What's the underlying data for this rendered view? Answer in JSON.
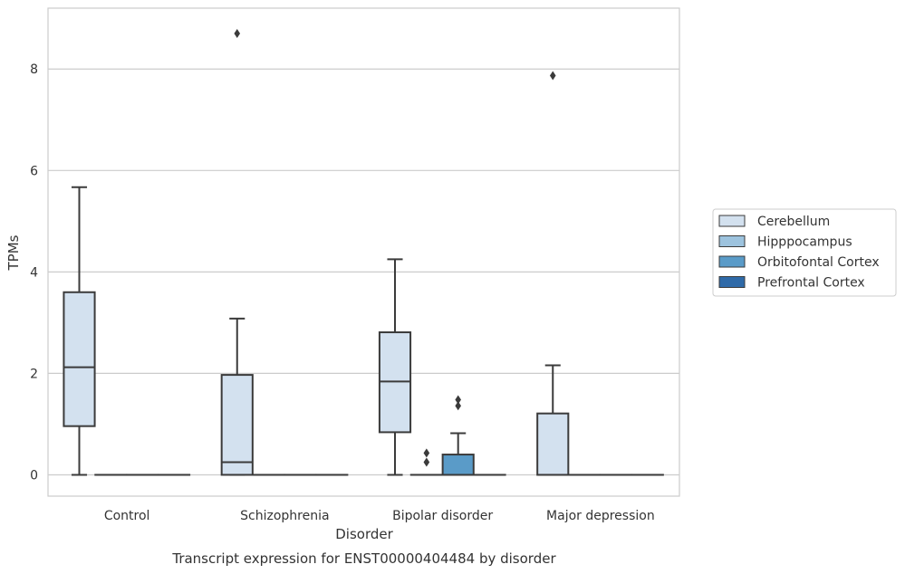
{
  "chart_data": {
    "type": "box",
    "title": "Transcript expression for ENST00000404484 by disorder",
    "xlabel": "Disorder",
    "ylabel": "TPMs",
    "ylim": [
      -0.42,
      9.2
    ],
    "yticks": [
      "0",
      "2",
      "4",
      "6",
      "8"
    ],
    "grid": true,
    "legend_placement": "right",
    "categories": [
      "Control",
      "Schizophrenia",
      "Bipolar disorder",
      "Major depression"
    ],
    "series": [
      {
        "name": "Cerebellum",
        "color": "#d3e1ef",
        "boxes": [
          {
            "q1": 0.96,
            "median": 2.12,
            "q3": 3.6,
            "whisker_low": 0.0,
            "whisker_high": 5.67,
            "outliers": []
          },
          {
            "q1": 0.0,
            "median": 0.25,
            "q3": 1.97,
            "whisker_low": 0.0,
            "whisker_high": 3.08,
            "outliers": [
              8.7
            ]
          },
          {
            "q1": 0.84,
            "median": 1.84,
            "q3": 2.81,
            "whisker_low": 0.0,
            "whisker_high": 4.25,
            "outliers": []
          },
          {
            "q1": 0.0,
            "median": 0.0,
            "q3": 1.21,
            "whisker_low": 0.0,
            "whisker_high": 2.16,
            "outliers": [
              7.87
            ]
          }
        ]
      },
      {
        "name": "Hipppocampus",
        "color": "#9dc3de",
        "boxes": [
          {
            "q1": 0.0,
            "median": 0.0,
            "q3": 0.0,
            "whisker_low": 0.0,
            "whisker_high": 0.0,
            "outliers": []
          },
          {
            "q1": 0.0,
            "median": 0.0,
            "q3": 0.0,
            "whisker_low": 0.0,
            "whisker_high": 0.0,
            "outliers": []
          },
          {
            "q1": 0.0,
            "median": 0.0,
            "q3": 0.0,
            "whisker_low": 0.0,
            "whisker_high": 0.0,
            "outliers": [
              0.25,
              0.43
            ]
          },
          {
            "q1": 0.0,
            "median": 0.0,
            "q3": 0.0,
            "whisker_low": 0.0,
            "whisker_high": 0.0,
            "outliers": []
          }
        ]
      },
      {
        "name": "Orbitofontal Cortex",
        "color": "#5a9bc8",
        "boxes": [
          {
            "q1": 0.0,
            "median": 0.0,
            "q3": 0.0,
            "whisker_low": 0.0,
            "whisker_high": 0.0,
            "outliers": []
          },
          {
            "q1": 0.0,
            "median": 0.0,
            "q3": 0.0,
            "whisker_low": 0.0,
            "whisker_high": 0.0,
            "outliers": []
          },
          {
            "q1": 0.0,
            "median": 0.0,
            "q3": 0.4,
            "whisker_low": 0.0,
            "whisker_high": 0.82,
            "outliers": [
              1.36,
              1.48
            ]
          },
          {
            "q1": 0.0,
            "median": 0.0,
            "q3": 0.0,
            "whisker_low": 0.0,
            "whisker_high": 0.0,
            "outliers": []
          }
        ]
      },
      {
        "name": "Prefrontal Cortex",
        "color": "#2f6aa8",
        "boxes": [
          {
            "q1": 0.0,
            "median": 0.0,
            "q3": 0.0,
            "whisker_low": 0.0,
            "whisker_high": 0.0,
            "outliers": []
          },
          {
            "q1": 0.0,
            "median": 0.0,
            "q3": 0.0,
            "whisker_low": 0.0,
            "whisker_high": 0.0,
            "outliers": []
          },
          {
            "q1": 0.0,
            "median": 0.0,
            "q3": 0.0,
            "whisker_low": 0.0,
            "whisker_high": 0.0,
            "outliers": []
          },
          {
            "q1": 0.0,
            "median": 0.0,
            "q3": 0.0,
            "whisker_low": 0.0,
            "whisker_high": 0.0,
            "outliers": []
          }
        ]
      }
    ]
  }
}
